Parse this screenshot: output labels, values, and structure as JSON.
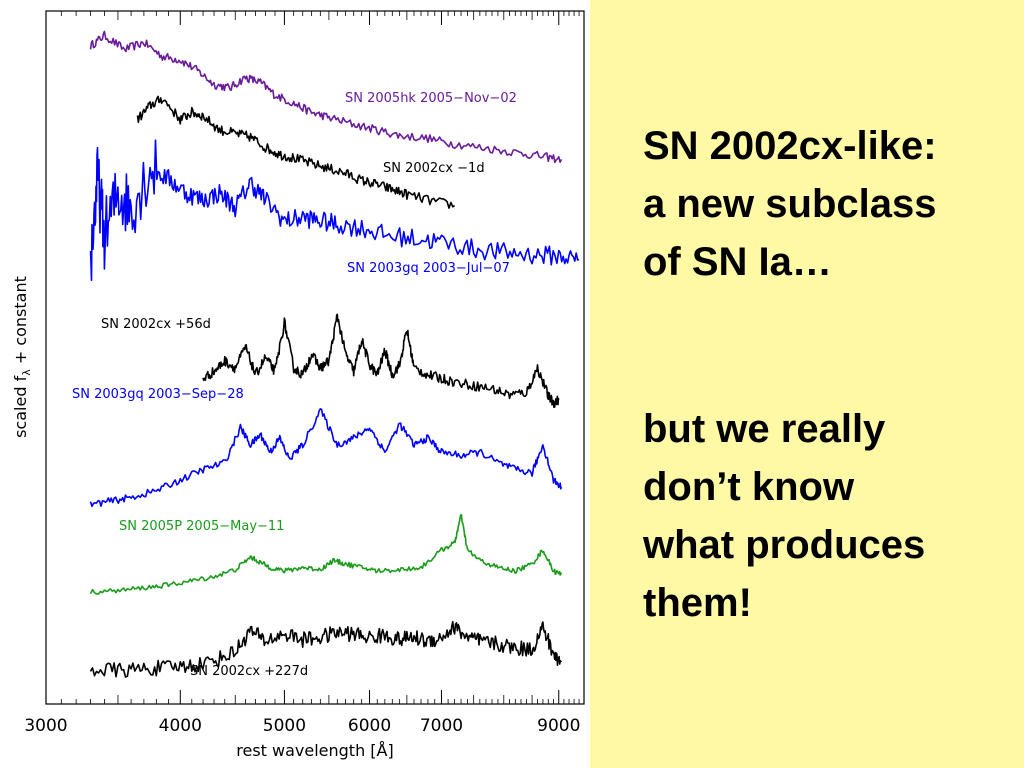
{
  "slide": {
    "paragraph_1": "SN 2002cx-like: a new subclass of SN Ia…",
    "paragraph_2": "but we really don’t know what produces them!"
  },
  "colors": {
    "background": "#ffffff",
    "text_panel": "#fff9a5"
  },
  "chart_data": {
    "type": "line",
    "xlabel": "rest wavelength [Å]",
    "ylabel": "scaled f_λ + constant",
    "ylabel_main": "scaled f",
    "ylabel_sub": "λ",
    "ylabel_rest": " + constant",
    "x_scale": "log",
    "xlim": [
      3000,
      9500
    ],
    "x_ticks": [
      3000,
      4000,
      5000,
      6000,
      7000,
      9000
    ],
    "x_tick_labels": [
      "3000",
      "4000",
      "5000",
      "6000",
      "7000",
      "9000"
    ],
    "y_ticks_shown": false,
    "grid": false,
    "series": [
      {
        "name": "SN 2005hk 2005−Nov−02",
        "color": "#6a1b9a",
        "x": [
          3300,
          3400,
          3550,
          3700,
          3850,
          4000,
          4150,
          4300,
          4450,
          4600,
          4750,
          4900,
          5100,
          5300,
          5500,
          5800,
          6100,
          6400,
          6800,
          7200,
          7700,
          8200,
          8700,
          9050
        ],
        "y": [
          7.9,
          8.05,
          7.85,
          7.95,
          7.75,
          7.7,
          7.55,
          7.35,
          7.3,
          7.45,
          7.38,
          7.2,
          7.08,
          6.95,
          6.88,
          6.78,
          6.7,
          6.62,
          6.58,
          6.5,
          6.44,
          6.38,
          6.32,
          6.28
        ]
      },
      {
        "name": "SN 2002cx  −1d",
        "color": "#000000",
        "x": [
          3650,
          3750,
          3850,
          4000,
          4100,
          4200,
          4350,
          4500,
          4650,
          4800,
          4950,
          5100,
          5300,
          5500,
          5700,
          5900,
          6100,
          6300,
          6500,
          6800,
          7200
        ],
        "y": [
          6.85,
          7.05,
          7.15,
          6.85,
          6.95,
          6.9,
          6.7,
          6.65,
          6.6,
          6.45,
          6.35,
          6.3,
          6.22,
          6.15,
          6.08,
          5.98,
          5.92,
          5.85,
          5.78,
          5.7,
          5.62
        ]
      },
      {
        "name": "SN 2003gq 2003−Jul−07",
        "color": "#0000ff",
        "x": [
          3300,
          3350,
          3400,
          3500,
          3600,
          3750,
          3900,
          4050,
          4200,
          4350,
          4500,
          4650,
          4800,
          5000,
          5200,
          5400,
          5600,
          5900,
          6200,
          6600,
          7000,
          7500,
          8000,
          8500,
          9000,
          9400
        ],
        "y": [
          4.8,
          6.0,
          5.2,
          5.8,
          5.6,
          6.15,
          6.0,
          5.8,
          5.7,
          5.8,
          5.6,
          5.95,
          5.7,
          5.4,
          5.45,
          5.4,
          5.35,
          5.3,
          5.2,
          5.15,
          5.1,
          5.0,
          4.95,
          4.92,
          4.9,
          4.85
        ]
      },
      {
        "name": "SN 2002cx  +56d",
        "color": "#000000",
        "x": [
          4200,
          4300,
          4400,
          4500,
          4600,
          4700,
          4800,
          4900,
          5000,
          5100,
          5200,
          5300,
          5400,
          5500,
          5600,
          5700,
          5800,
          5900,
          6000,
          6100,
          6200,
          6300,
          6400,
          6500,
          6600,
          6800,
          7000,
          7200,
          7500,
          7800,
          8100,
          8400,
          8600,
          8800,
          8900,
          9000
        ],
        "y": [
          3.15,
          3.25,
          3.4,
          3.3,
          3.6,
          3.2,
          3.45,
          3.25,
          3.95,
          3.3,
          3.2,
          3.5,
          3.3,
          3.4,
          4.05,
          3.5,
          3.25,
          3.7,
          3.35,
          3.2,
          3.55,
          3.2,
          3.35,
          3.85,
          3.3,
          3.2,
          3.15,
          3.1,
          3.05,
          3.0,
          2.92,
          2.95,
          3.3,
          2.9,
          2.8,
          2.85
        ]
      },
      {
        "name": "SN 2003gq 2003−Sep−28",
        "color": "#0000ff",
        "x": [
          3300,
          3450,
          3600,
          3800,
          4000,
          4200,
          4400,
          4550,
          4650,
          4750,
          4850,
          4950,
          5050,
          5200,
          5400,
          5600,
          5800,
          6000,
          6200,
          6400,
          6600,
          6800,
          7000,
          7300,
          7600,
          7900,
          8200,
          8500,
          8700,
          8900,
          9050
        ],
        "y": [
          1.35,
          1.4,
          1.45,
          1.55,
          1.7,
          1.85,
          1.95,
          2.45,
          2.2,
          2.35,
          2.1,
          2.3,
          2.0,
          2.2,
          2.7,
          2.2,
          2.3,
          2.45,
          2.1,
          2.5,
          2.2,
          2.3,
          2.1,
          2.05,
          2.1,
          1.95,
          1.85,
          1.8,
          2.2,
          1.7,
          1.6
        ]
      },
      {
        "name": "SN 2005P 2005−May−11",
        "color": "#1a9c1a",
        "x": [
          3300,
          3500,
          3700,
          3900,
          4100,
          4300,
          4500,
          4650,
          4750,
          4850,
          5000,
          5200,
          5400,
          5550,
          5700,
          5900,
          6100,
          6400,
          6700,
          7000,
          7200,
          7300,
          7400,
          7600,
          7900,
          8200,
          8500,
          8700,
          8900,
          9050
        ],
        "y": [
          0.1,
          0.12,
          0.16,
          0.2,
          0.26,
          0.32,
          0.42,
          0.6,
          0.52,
          0.45,
          0.4,
          0.45,
          0.42,
          0.55,
          0.5,
          0.45,
          0.4,
          0.42,
          0.45,
          0.7,
          0.8,
          1.2,
          0.7,
          0.55,
          0.45,
          0.4,
          0.5,
          0.7,
          0.4,
          0.35
        ]
      },
      {
        "name": "SN 2002cx  +227d",
        "color": "#000000",
        "x": [
          3300,
          3500,
          3700,
          3900,
          4100,
          4300,
          4500,
          4650,
          4800,
          5000,
          5200,
          5400,
          5600,
          5800,
          6000,
          6200,
          6400,
          6600,
          6800,
          7000,
          7200,
          7400,
          7600,
          7900,
          8200,
          8500,
          8700,
          8900,
          9050
        ],
        "y": [
          -1.0,
          -1.02,
          -1.0,
          -0.98,
          -0.95,
          -0.88,
          -0.75,
          -0.45,
          -0.6,
          -0.5,
          -0.58,
          -0.55,
          -0.48,
          -0.5,
          -0.55,
          -0.52,
          -0.58,
          -0.55,
          -0.6,
          -0.55,
          -0.4,
          -0.55,
          -0.6,
          -0.65,
          -0.7,
          -0.72,
          -0.4,
          -0.8,
          -0.9
        ]
      }
    ]
  }
}
